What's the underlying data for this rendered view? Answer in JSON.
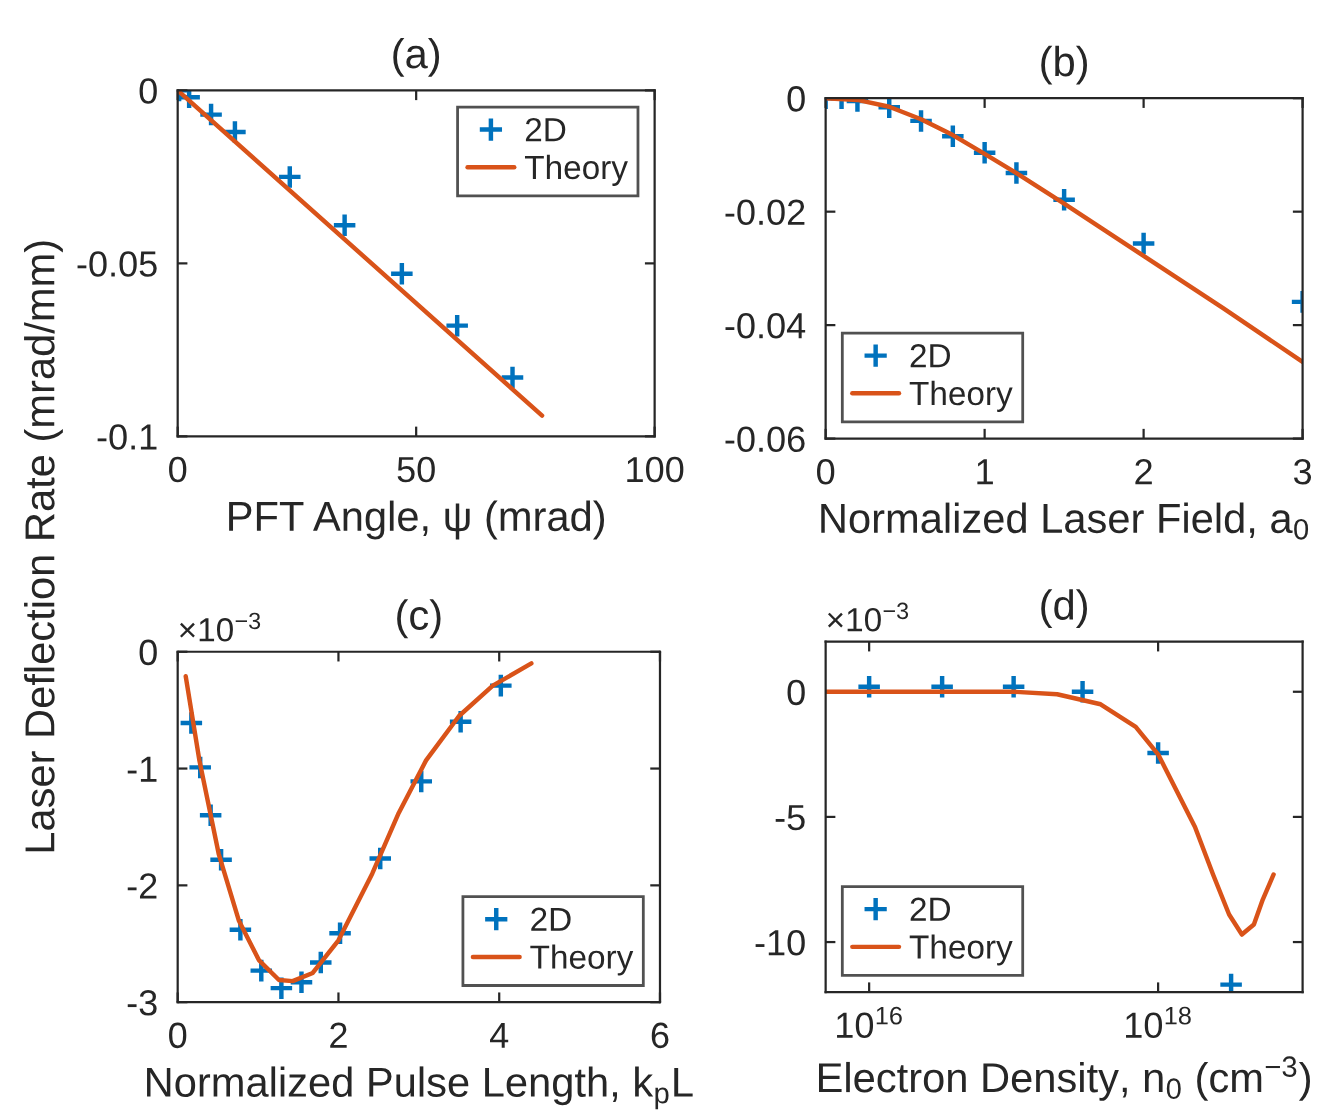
{
  "chart_data": [
    {
      "type": "scatter",
      "title": "(a)",
      "xlabel": "PFT Angle, ψ (mrad)",
      "ylabel": "Laser Deflection Rate (mrad/mm)",
      "xlim": [
        0,
        100
      ],
      "ylim": [
        -0.1,
        0
      ],
      "xticks": [
        0,
        50,
        100
      ],
      "yticks": [
        {
          "value": -0.1,
          "label": "-0.1"
        },
        {
          "value": -0.05,
          "label": "-0.05"
        },
        0
      ],
      "legend": "top right",
      "grid": false,
      "series": [
        {
          "name": "2D",
          "marker": "cross",
          "color": "#0072bd",
          "x": [
            0.3,
            2.4,
            7,
            12,
            23.5,
            35,
            47,
            58.6,
            70.2
          ],
          "values": [
            0,
            -0.002,
            -0.007,
            -0.012,
            -0.025,
            -0.039,
            -0.053,
            -0.068,
            -0.083
          ]
        },
        {
          "name": "Theory",
          "type": "line",
          "color": "#d95319",
          "x": [
            0,
            76.4
          ],
          "values": [
            0,
            -0.094
          ]
        }
      ]
    },
    {
      "type": "scatter",
      "title": "(b)",
      "xlabel": "Normalized Laser Field, a$_{0}$",
      "xlim": [
        0,
        3
      ],
      "ylim": [
        -0.06,
        0
      ],
      "xticks": [
        0,
        1,
        2,
        3
      ],
      "yticks": [
        {
          "value": -0.06,
          "label": "-0.06"
        },
        {
          "value": -0.04,
          "label": "-0.04"
        },
        {
          "value": -0.02,
          "label": "-0.02"
        },
        0
      ],
      "legend": "bottom left",
      "grid": false,
      "series": [
        {
          "name": "2D",
          "marker": "cross",
          "color": "#0072bd",
          "x": [
            0,
            0.1,
            0.2,
            0.4,
            0.6,
            0.8,
            1,
            1.2,
            1.5,
            2,
            3
          ],
          "values": [
            0,
            0,
            -0.0005,
            -0.0016,
            -0.004,
            -0.0067,
            -0.0096,
            -0.0132,
            -0.0179,
            -0.0256,
            -0.0359
          ]
        },
        {
          "name": "Theory",
          "type": "line",
          "color": "#d95319",
          "x": [
            0,
            0.2,
            0.4,
            0.6,
            0.8,
            1,
            1.2,
            1.5,
            2,
            2.5,
            3
          ],
          "values": [
            0,
            -0.0003,
            -0.0015,
            -0.0037,
            -0.0065,
            -0.0098,
            -0.0132,
            -0.0186,
            -0.0278,
            -0.037,
            -0.0465
          ]
        }
      ]
    },
    {
      "type": "scatter",
      "title": "(c)",
      "xlabel": "Normalized Pulse Length, k$_{p}$L",
      "xlim": [
        0,
        6
      ],
      "ylim": [
        -3,
        0
      ],
      "xticks": [
        0,
        2,
        4,
        6
      ],
      "yticks": [
        {
          "value": -3,
          "label": "-3"
        },
        {
          "value": -2,
          "label": "-2"
        },
        {
          "value": -1,
          "label": "-1"
        },
        0
      ],
      "legend": "bottom right",
      "grid": false,
      "annotations": [
        "×10$^{−3}$"
      ],
      "series": [
        {
          "name": "2D",
          "marker": "cross",
          "color": "#0072bd",
          "x": [
            0.17,
            0.28,
            0.41,
            0.54,
            0.78,
            1.04,
            1.29,
            1.54,
            1.78,
            2.02,
            2.52,
            3.03,
            3.52,
            4.02
          ],
          "values": [
            -0.61,
            -0.99,
            -1.4,
            -1.78,
            -2.38,
            -2.73,
            -2.88,
            -2.83,
            -2.66,
            -2.41,
            -1.77,
            -1.11,
            -0.6,
            -0.29
          ]
        },
        {
          "name": "Theory",
          "type": "line",
          "color": "#d95319",
          "x": [
            0.1,
            0.27,
            0.51,
            0.76,
            1.01,
            1.26,
            1.43,
            1.68,
            2.0,
            2.42,
            2.75,
            3.09,
            3.5,
            3.92,
            4.4
          ],
          "values": [
            -0.21,
            -0.93,
            -1.73,
            -2.3,
            -2.64,
            -2.81,
            -2.82,
            -2.75,
            -2.47,
            -1.9,
            -1.38,
            -0.93,
            -0.55,
            -0.29,
            -0.1
          ]
        }
      ]
    },
    {
      "type": "scatter",
      "title": "(d)",
      "xlabel": "Electron Density, n$_{0}$ (cm$^{−3}$)",
      "log": "x",
      "xlim": [
        5000000000000000.0,
        1e+19
      ],
      "ylim": [
        -12,
        2
      ],
      "xticks": [
        {
          "value": 1e+16,
          "label": "10$^{16}$"
        },
        {
          "value": 1e+18,
          "label": "10$^{18}$"
        }
      ],
      "yticks": [
        {
          "value": -10,
          "label": "-10"
        },
        {
          "value": -5,
          "label": "-5"
        },
        0
      ],
      "legend": "bottom left",
      "grid": false,
      "annotations": [
        "×10$^{−3}$"
      ],
      "series": [
        {
          "name": "2D",
          "marker": "cross",
          "color": "#0072bd",
          "x": [
            1e+16,
            3.2e+16,
            1e+17,
            3e+17,
            1e+18,
            3.2e+18
          ],
          "values": [
            0.2,
            0.2,
            0.2,
            0,
            -2.45,
            -11.7
          ]
        },
        {
          "name": "Theory",
          "type": "line",
          "color": "#d95319",
          "x": [
            5000000000000000.0,
            1e+16,
            1e+17,
            2e+17,
            4e+17,
            7e+17,
            1e+18,
            1.8e+18,
            2.4e+18,
            3.1e+18,
            3.8e+18,
            4.6e+18,
            5.3e+18,
            6.3e+18
          ],
          "values": [
            0,
            0,
            0,
            -0.1,
            -0.5,
            -1.4,
            -2.5,
            -5.4,
            -7.3,
            -8.9,
            -9.7,
            -9.3,
            -8.3,
            -7.3
          ]
        }
      ]
    }
  ]
}
